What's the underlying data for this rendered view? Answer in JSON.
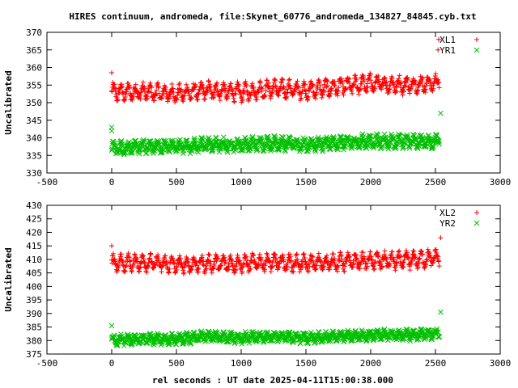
{
  "title": "HIRES continuum, andromeda, file:Skynet_60776_andromeda_134827_84845.cyb.txt",
  "xlabel": "rel seconds : UT date 2025-04-11T15:00:38.000",
  "colors": {
    "red": "#ff0000",
    "green": "#00c000"
  },
  "chart_data": [
    {
      "type": "scatter",
      "xlim": [
        -500,
        3000
      ],
      "ylim": [
        330,
        370
      ],
      "xticks": [
        -500,
        0,
        500,
        1000,
        1500,
        2000,
        2500,
        3000
      ],
      "yticks": [
        330,
        335,
        340,
        345,
        350,
        355,
        360,
        365,
        370
      ],
      "ylabel": "Uncalibrated",
      "legend_position": "top-right",
      "series": [
        {
          "name": "XL1",
          "marker": "plus",
          "color": "#ff0000",
          "x": [
            0,
            250,
            500,
            750,
            1000,
            1250,
            1500,
            1750,
            2000,
            2250,
            2500,
            2530
          ],
          "y": [
            353.0,
            353.0,
            352.5,
            353.5,
            353.0,
            354.0,
            353.5,
            354.5,
            355.5,
            355.0,
            355.5,
            356.5
          ],
          "spread": [
            4,
            4,
            4,
            4,
            4,
            4,
            4,
            4,
            4,
            4,
            4,
            4
          ],
          "outliers": [
            {
              "x": 0,
              "y": 358.5
            },
            {
              "x": 2520,
              "y": 365
            },
            {
              "x": 2525,
              "y": 368
            }
          ]
        },
        {
          "name": "YR1",
          "marker": "cross",
          "color": "#00c000",
          "x": [
            0,
            250,
            500,
            750,
            1000,
            1250,
            1500,
            1750,
            2000,
            2250,
            2500,
            2530
          ],
          "y": [
            337.0,
            337.5,
            337.5,
            338.0,
            338.0,
            338.5,
            338.0,
            338.5,
            339.0,
            339.0,
            339.0,
            339.5
          ],
          "spread": [
            3,
            3,
            3,
            3,
            3,
            3,
            3,
            3,
            3,
            3,
            3,
            3
          ],
          "outliers": [
            {
              "x": 0,
              "y": 343
            },
            {
              "x": 0,
              "y": 342
            },
            {
              "x": 2540,
              "y": 347
            }
          ]
        }
      ]
    },
    {
      "type": "scatter",
      "xlim": [
        -500,
        3000
      ],
      "ylim": [
        375,
        430
      ],
      "xticks": [
        -500,
        0,
        500,
        1000,
        1500,
        2000,
        2500,
        3000
      ],
      "yticks": [
        375,
        380,
        385,
        390,
        395,
        400,
        405,
        410,
        415,
        420,
        425,
        430
      ],
      "ylabel": "Uncalibrated",
      "legend_position": "top-right",
      "series": [
        {
          "name": "XL2",
          "marker": "plus",
          "color": "#ff0000",
          "x": [
            0,
            250,
            500,
            750,
            1000,
            1250,
            1500,
            1750,
            2000,
            2250,
            2500,
            2530
          ],
          "y": [
            408.5,
            409.0,
            408.0,
            408.5,
            408.5,
            409.0,
            408.5,
            409.0,
            409.5,
            409.5,
            410.5,
            411.0
          ],
          "spread": [
            5,
            5,
            5,
            5,
            5,
            5,
            5,
            5,
            5,
            5,
            5,
            5
          ],
          "outliers": [
            {
              "x": 0,
              "y": 415
            },
            {
              "x": 2540,
              "y": 418
            }
          ]
        },
        {
          "name": "YR2",
          "marker": "cross",
          "color": "#00c000",
          "x": [
            0,
            250,
            500,
            750,
            1000,
            1250,
            1500,
            1750,
            2000,
            2250,
            2500,
            2530
          ],
          "y": [
            380.0,
            380.5,
            380.5,
            381.5,
            381.0,
            381.5,
            381.0,
            381.5,
            382.0,
            382.0,
            382.5,
            383.0
          ],
          "spread": [
            3,
            3,
            3,
            3,
            3,
            3,
            3,
            3,
            3,
            3,
            3,
            3
          ],
          "outliers": [
            {
              "x": 0,
              "y": 385.5
            },
            {
              "x": 2540,
              "y": 390.5
            }
          ]
        }
      ]
    }
  ]
}
